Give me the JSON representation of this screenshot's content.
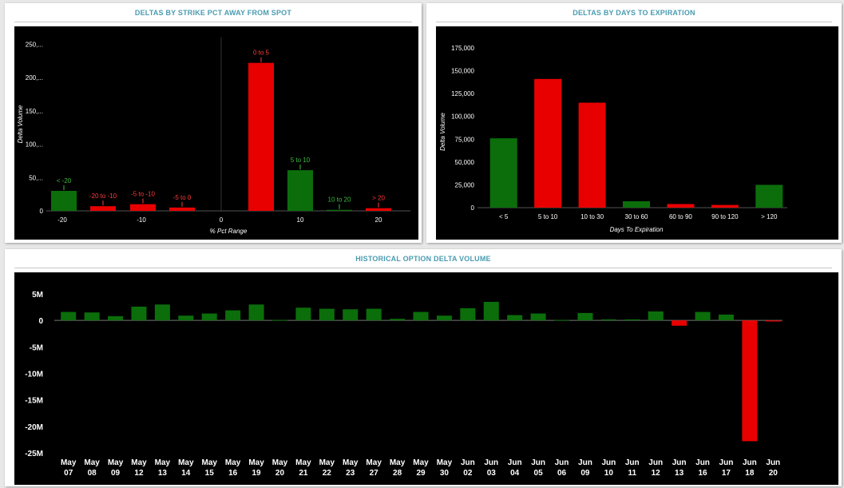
{
  "panels": {
    "strike": {
      "title": "DELTAS BY STRIKE PCT AWAY FROM SPOT"
    },
    "days": {
      "title": "DELTAS BY DAYS TO EXPIRATION"
    },
    "history": {
      "title": "HISTORICAL OPTION DELTA VOLUME"
    }
  },
  "colors": {
    "positive": "#0b6e0b",
    "negative": "#e80000",
    "positive_label": "#3dbb3d",
    "negative_label": "#ff3b3b"
  },
  "chart_data": [
    {
      "id": "strike",
      "type": "bar",
      "title": "DELTAS BY STRIKE PCT AWAY FROM SPOT",
      "xlabel": "% Pct Range",
      "ylabel": "Delta Volume",
      "x_ticks": [
        "-20",
        "-10",
        "0",
        "10",
        "20"
      ],
      "y_ticks": [
        "0",
        "50,...",
        "100,...",
        "150,...",
        "200,...",
        "250,..."
      ],
      "ylim": [
        0,
        260000
      ],
      "bars": [
        {
          "label": "< -20",
          "value": 30000,
          "sign": "positive"
        },
        {
          "label": "-20 to -10",
          "value": 7000,
          "sign": "negative"
        },
        {
          "label": "-5 to -10",
          "value": 10000,
          "sign": "negative"
        },
        {
          "label": "-5 to 0",
          "value": 5000,
          "sign": "negative"
        },
        {
          "label": "0 to 5",
          "value": 222000,
          "sign": "negative"
        },
        {
          "label": "5 to 10",
          "value": 61000,
          "sign": "positive"
        },
        {
          "label": "10 to 20",
          "value": 1500,
          "sign": "positive"
        },
        {
          "label": "> 20",
          "value": 4000,
          "sign": "negative"
        }
      ]
    },
    {
      "id": "days",
      "type": "bar",
      "title": "DELTAS BY DAYS TO EXPIRATION",
      "xlabel": "Days To Expiration",
      "ylabel": "Delta Volume",
      "categories": [
        "< 5",
        "5 to 10",
        "10 to 30",
        "30 to 60",
        "60 to 90",
        "90 to 120",
        "> 120"
      ],
      "values": [
        76000,
        141000,
        115000,
        7000,
        4000,
        3000,
        25000
      ],
      "signs": [
        "positive",
        "negative",
        "negative",
        "positive",
        "negative",
        "negative",
        "positive"
      ],
      "y_ticks": [
        "0",
        "25,000",
        "50,000",
        "75,000",
        "100,000",
        "125,000",
        "150,000",
        "175,000"
      ],
      "ylim": [
        0,
        175000
      ]
    },
    {
      "id": "history",
      "type": "bar",
      "title": "HISTORICAL OPTION DELTA VOLUME",
      "y_ticks": [
        "-25M",
        "-20M",
        "-15M",
        "-10M",
        "-5M",
        "0",
        "5M"
      ],
      "ylim": [
        -25000000,
        5000000
      ],
      "categories": [
        [
          "May",
          "07"
        ],
        [
          "May",
          "08"
        ],
        [
          "May",
          "09"
        ],
        [
          "May",
          "12"
        ],
        [
          "May",
          "13"
        ],
        [
          "May",
          "14"
        ],
        [
          "May",
          "15"
        ],
        [
          "May",
          "16"
        ],
        [
          "May",
          "19"
        ],
        [
          "May",
          "20"
        ],
        [
          "May",
          "21"
        ],
        [
          "May",
          "22"
        ],
        [
          "May",
          "23"
        ],
        [
          "May",
          "27"
        ],
        [
          "May",
          "28"
        ],
        [
          "May",
          "29"
        ],
        [
          "May",
          "30"
        ],
        [
          "Jun",
          "02"
        ],
        [
          "Jun",
          "03"
        ],
        [
          "Jun",
          "04"
        ],
        [
          "Jun",
          "05"
        ],
        [
          "Jun",
          "06"
        ],
        [
          "Jun",
          "09"
        ],
        [
          "Jun",
          "10"
        ],
        [
          "Jun",
          "11"
        ],
        [
          "Jun",
          "12"
        ],
        [
          "Jun",
          "13"
        ],
        [
          "Jun",
          "16"
        ],
        [
          "Jun",
          "17"
        ],
        [
          "Jun",
          "18"
        ],
        [
          "Jun",
          "20"
        ]
      ],
      "values": [
        1600000,
        1500000,
        800000,
        2600000,
        3000000,
        900000,
        1300000,
        1900000,
        3000000,
        100000,
        2400000,
        2200000,
        2100000,
        2200000,
        300000,
        1600000,
        900000,
        2300000,
        3500000,
        1000000,
        1300000,
        100000,
        1400000,
        200000,
        200000,
        1700000,
        -1000000,
        1600000,
        1100000,
        -22800000,
        -200000
      ]
    }
  ]
}
